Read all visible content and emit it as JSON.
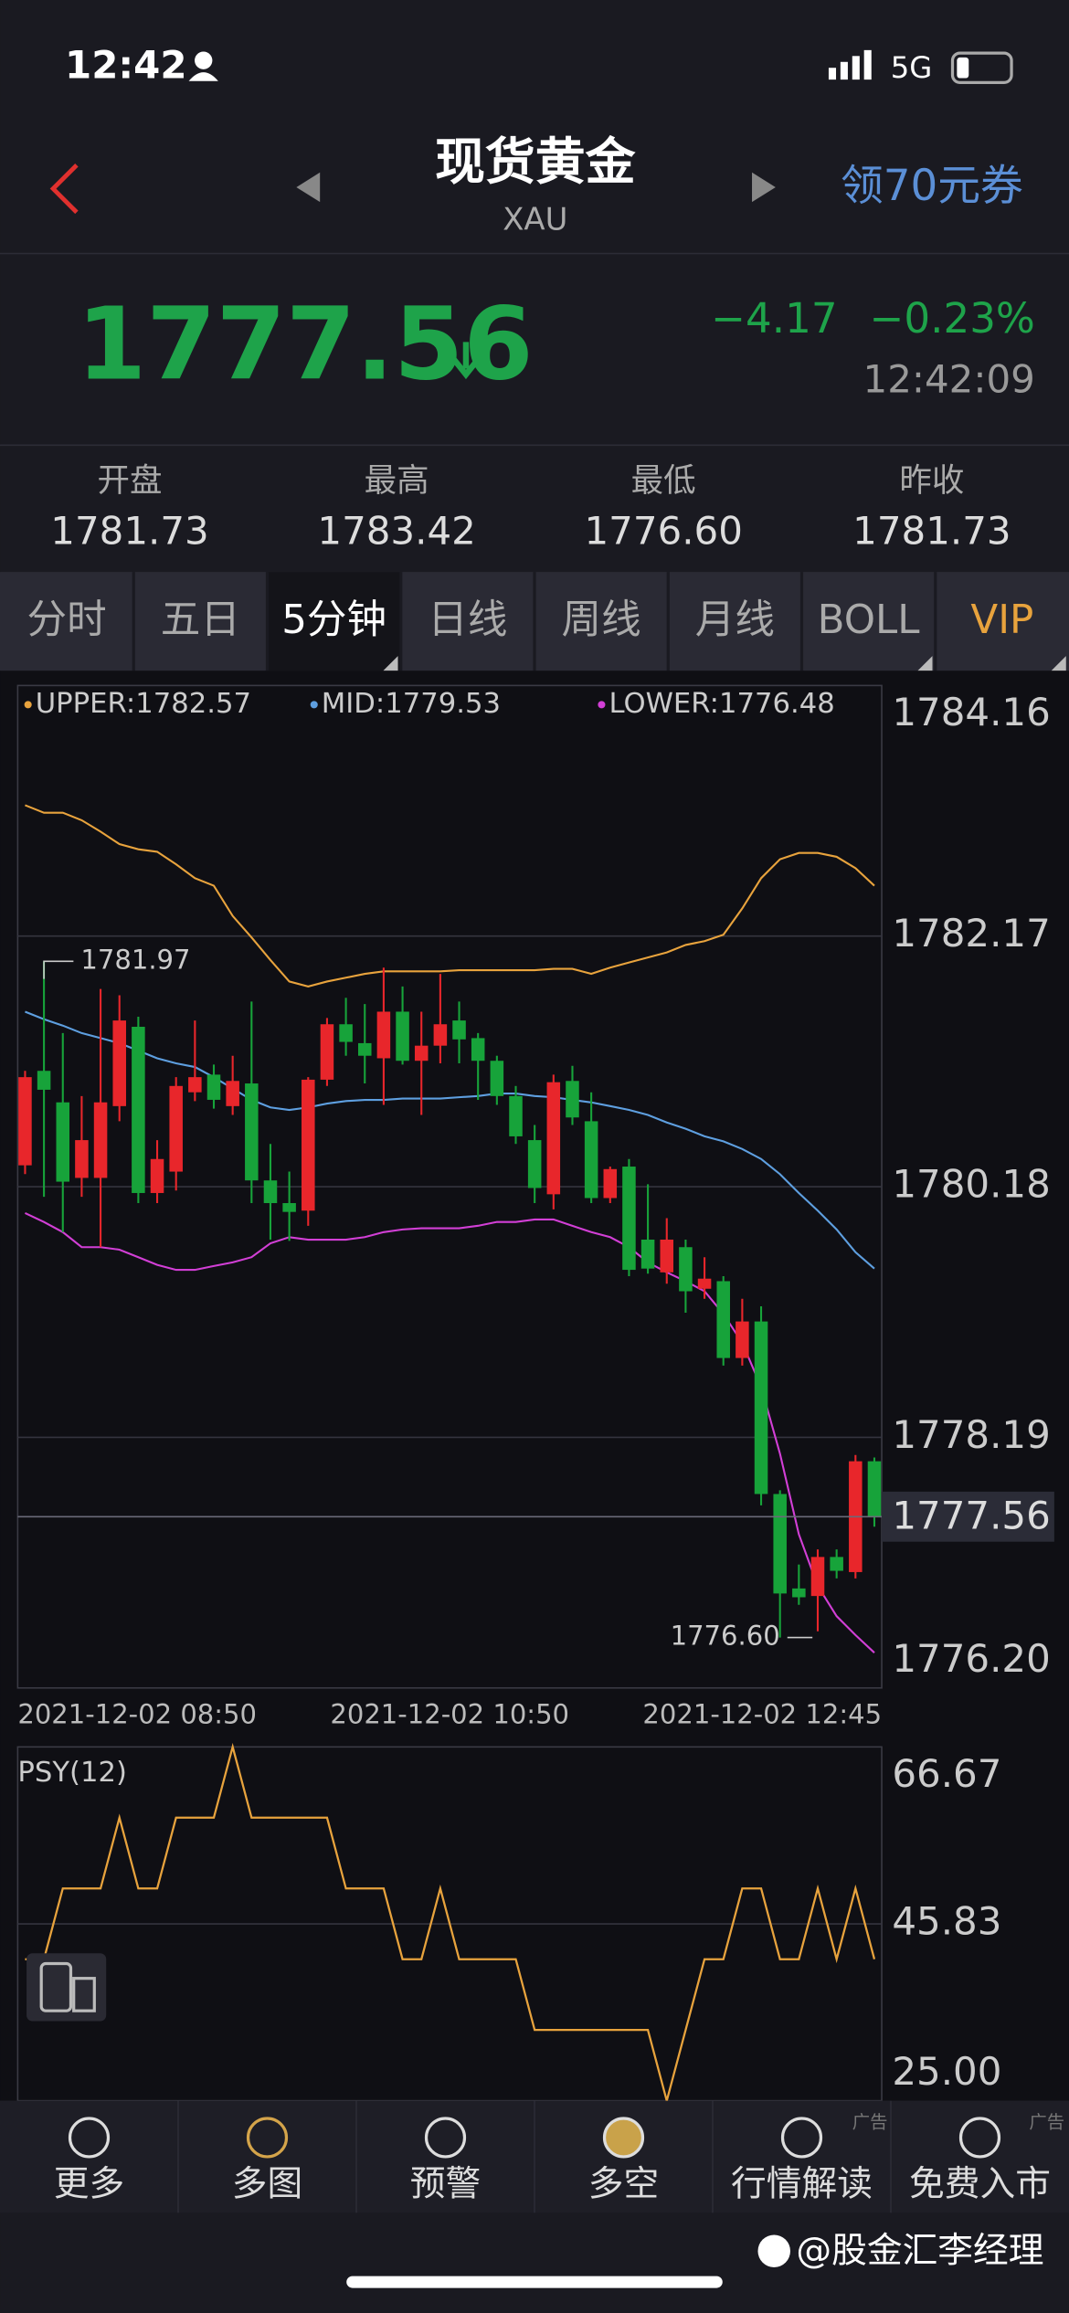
{
  "status": {
    "time": "12:42",
    "network": "5G"
  },
  "header": {
    "title": "现货黄金",
    "symbol": "XAU",
    "promo": "领70元券"
  },
  "quote": {
    "price": "1777.56",
    "change": "−4.17",
    "change_pct": "−0.23%",
    "time": "12:42:09"
  },
  "stats": [
    {
      "label": "开盘",
      "value": "1781.73"
    },
    {
      "label": "最高",
      "value": "1783.42"
    },
    {
      "label": "最低",
      "value": "1776.60"
    },
    {
      "label": "昨收",
      "value": "1781.73"
    }
  ],
  "tabs": [
    "分时",
    "五日",
    "5分钟",
    "日线",
    "周线",
    "月线",
    "BOLL",
    "VIP"
  ],
  "nav": [
    "更多",
    "多图",
    "预警",
    "多空",
    "行情解读",
    "免费入市"
  ],
  "ad_tags": [
    "广告",
    "广告"
  ],
  "watermark": "@股金汇李经理",
  "chart_data": [
    {
      "type": "candlestick",
      "legend": [
        "UPPER:1782.57",
        "MID:1779.53",
        "LOWER:1776.48"
      ],
      "colors": {
        "up": "#e8262b",
        "down": "#17a33a"
      },
      "candles": {
        "open": [
          1780.35,
          1781.1,
          1780.85,
          1780.25,
          1780.25,
          1780.82,
          1781.45,
          1780.13,
          1780.3,
          1780.93,
          1781.07,
          1780.82,
          1781.0,
          1780.23,
          1780.05,
          1779.99,
          1781.03,
          1781.47,
          1781.32,
          1781.2,
          1781.57,
          1781.18,
          1781.3,
          1781.5,
          1781.36,
          1781.18,
          1780.9,
          1780.55,
          1780.12,
          1781.02,
          1780.7,
          1780.09,
          1780.34,
          1779.76,
          1779.5,
          1779.7,
          1779.37,
          1779.43,
          1778.82,
          1779.11,
          1777.74,
          1776.99,
          1776.93,
          1777.24,
          1777.12,
          1778.0
        ],
        "high": [
          1781.1,
          1781.97,
          1781.4,
          1780.9,
          1781.75,
          1781.7,
          1781.53,
          1780.55,
          1781.05,
          1781.5,
          1781.15,
          1781.22,
          1781.65,
          1780.52,
          1780.3,
          1781.05,
          1781.52,
          1781.68,
          1781.63,
          1781.92,
          1781.77,
          1781.57,
          1781.87,
          1781.65,
          1781.4,
          1781.22,
          1780.98,
          1780.67,
          1781.07,
          1781.14,
          1780.93,
          1780.34,
          1780.4,
          1780.2,
          1779.93,
          1779.76,
          1779.62,
          1779.47,
          1779.29,
          1779.23,
          1777.77,
          1777.18,
          1777.3,
          1777.3,
          1778.05,
          1778.03
        ],
        "low": [
          1780.28,
          1780.1,
          1779.82,
          1780.1,
          1779.7,
          1780.7,
          1780.05,
          1780.05,
          1780.15,
          1780.86,
          1780.8,
          1780.75,
          1780.05,
          1779.76,
          1779.75,
          1779.87,
          1780.98,
          1781.22,
          1781.0,
          1780.83,
          1781.15,
          1780.75,
          1781.16,
          1781.16,
          1780.87,
          1780.83,
          1780.52,
          1780.05,
          1780.0,
          1780.67,
          1780.05,
          1780.05,
          1779.47,
          1779.49,
          1779.41,
          1779.18,
          1779.29,
          1778.76,
          1778.76,
          1777.65,
          1776.6,
          1776.86,
          1776.65,
          1777.07,
          1777.07,
          1777.48
        ],
        "close": [
          1781.05,
          1780.95,
          1780.22,
          1780.55,
          1780.85,
          1781.5,
          1780.13,
          1780.4,
          1780.98,
          1781.05,
          1780.87,
          1781.02,
          1780.23,
          1780.05,
          1779.98,
          1781.03,
          1781.47,
          1781.33,
          1781.22,
          1781.57,
          1781.18,
          1781.3,
          1781.47,
          1781.35,
          1781.18,
          1780.9,
          1780.58,
          1780.17,
          1781.01,
          1780.73,
          1780.09,
          1780.32,
          1779.52,
          1779.53,
          1779.76,
          1779.35,
          1779.45,
          1778.82,
          1779.11,
          1777.74,
          1776.95,
          1776.92,
          1777.24,
          1777.13,
          1778.0,
          1777.56
        ]
      },
      "series": [
        {
          "color": "#e8a33d",
          "values": [
            1783.21,
            1783.15,
            1783.15,
            1783.09,
            1783.0,
            1782.9,
            1782.86,
            1782.84,
            1782.74,
            1782.63,
            1782.57,
            1782.33,
            1782.16,
            1781.98,
            1781.81,
            1781.77,
            1781.81,
            1781.84,
            1781.87,
            1781.89,
            1781.89,
            1781.89,
            1781.89,
            1781.9,
            1781.9,
            1781.9,
            1781.9,
            1781.9,
            1781.91,
            1781.91,
            1781.87,
            1781.92,
            1781.96,
            1782.0,
            1782.04,
            1782.1,
            1782.13,
            1782.18,
            1782.39,
            1782.63,
            1782.78,
            1782.83,
            1782.83,
            1782.8,
            1782.71,
            1782.57
          ]
        },
        {
          "color": "#5e9fe0",
          "values": [
            1781.57,
            1781.51,
            1781.46,
            1781.4,
            1781.36,
            1781.32,
            1781.26,
            1781.2,
            1781.16,
            1781.13,
            1781.05,
            1780.96,
            1780.87,
            1780.81,
            1780.79,
            1780.81,
            1780.84,
            1780.86,
            1780.87,
            1780.87,
            1780.88,
            1780.88,
            1780.88,
            1780.89,
            1780.9,
            1780.92,
            1780.92,
            1780.9,
            1780.89,
            1780.87,
            1780.85,
            1780.82,
            1780.79,
            1780.75,
            1780.69,
            1780.64,
            1780.58,
            1780.54,
            1780.48,
            1780.4,
            1780.28,
            1780.13,
            1779.99,
            1779.84,
            1779.66,
            1779.53
          ]
        },
        {
          "color": "#d23fd6",
          "values": [
            1779.97,
            1779.9,
            1779.82,
            1779.7,
            1779.7,
            1779.68,
            1779.62,
            1779.56,
            1779.52,
            1779.52,
            1779.55,
            1779.58,
            1779.62,
            1779.73,
            1779.78,
            1779.76,
            1779.76,
            1779.76,
            1779.78,
            1779.82,
            1779.84,
            1779.85,
            1779.85,
            1779.85,
            1779.87,
            1779.9,
            1779.9,
            1779.92,
            1779.92,
            1779.87,
            1779.82,
            1779.78,
            1779.7,
            1779.58,
            1779.5,
            1779.43,
            1779.35,
            1779.17,
            1778.94,
            1778.59,
            1778.06,
            1777.42,
            1777.01,
            1776.77,
            1776.62,
            1776.48
          ]
        }
      ],
      "high_label": "1781.97",
      "low_label": "1776.60",
      "x_labels": [
        "2021-12-02 08:50",
        "2021-12-02 10:50",
        "2021-12-02 12:45"
      ],
      "ylim": [
        1776.2,
        1784.16
      ],
      "yticks": [
        1784.16,
        1782.17,
        1780.18,
        1778.19,
        {
          "value": 1776.2,
          "label": "1776.20"
        }
      ],
      "grid": true
    },
    {
      "type": "line",
      "title": "PSY(12)",
      "series": [
        {
          "color": "#e8a33d",
          "values": [
            41.67,
            41.67,
            50,
            50,
            50,
            58.33,
            50,
            50,
            58.33,
            58.33,
            58.33,
            66.67,
            58.33,
            58.33,
            58.33,
            58.33,
            58.33,
            50,
            50,
            50,
            41.67,
            41.67,
            50,
            41.67,
            41.67,
            41.67,
            41.67,
            33.33,
            33.33,
            33.33,
            33.33,
            33.33,
            33.33,
            33.33,
            25,
            33.33,
            41.67,
            41.67,
            50,
            50,
            41.67,
            41.67,
            50,
            41.67,
            50,
            41.67
          ]
        }
      ],
      "ylim": [
        25,
        66.67
      ],
      "yticks": [
        66.67,
        45.83,
        {
          "value": 25,
          "label": "25.00"
        }
      ],
      "grid": true
    }
  ]
}
